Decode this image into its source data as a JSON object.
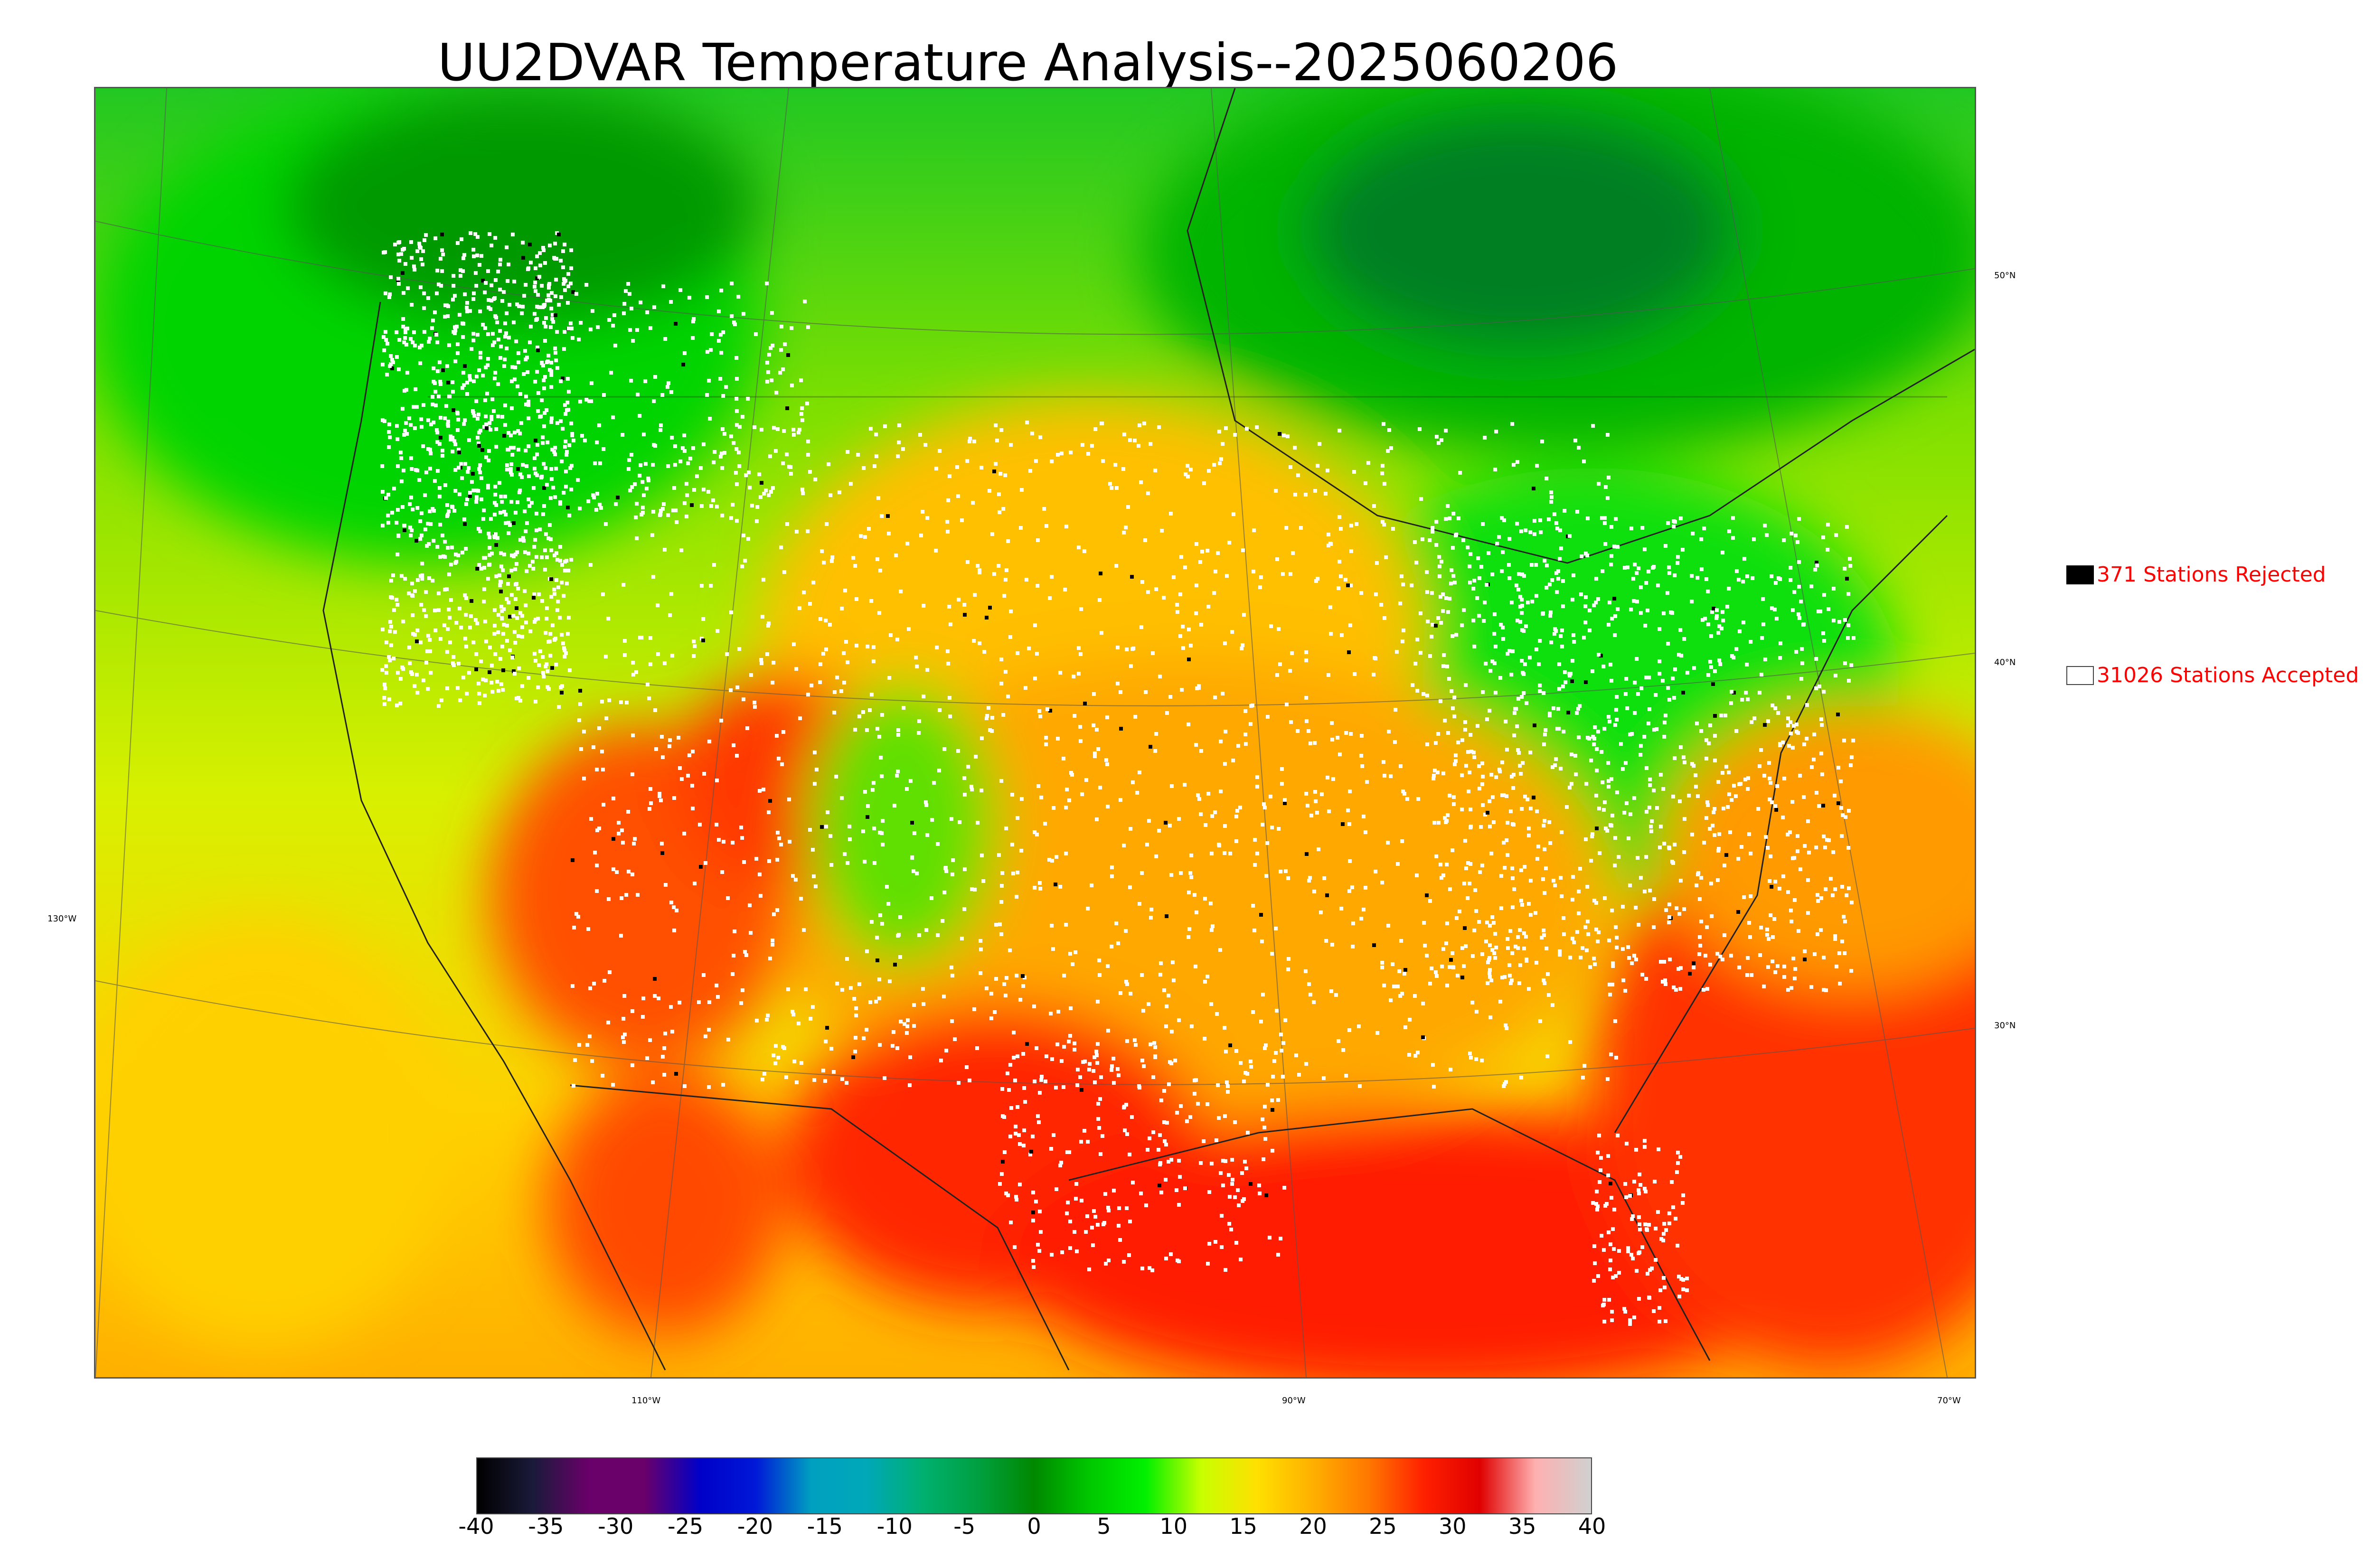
{
  "title": "UU2DVAR Temperature Analysis--2025060206",
  "legend": {
    "rejected": {
      "label": "371 Stations Rejected",
      "color": "#000000"
    },
    "accepted": {
      "label": "31026 Stations Accepted",
      "color": "#ffffff"
    }
  },
  "lat_labels": [
    "50°N",
    "40°N",
    "30°N"
  ],
  "lon_labels": [
    "130°W",
    "110°W",
    "90°W",
    "70°W"
  ],
  "colorbar": {
    "min": -40,
    "max": 40,
    "ticks": [
      "-40",
      "-35",
      "-30",
      "-25",
      "-20",
      "-15",
      "-10",
      "-5",
      "0",
      "5",
      "10",
      "15",
      "20",
      "25",
      "30",
      "35",
      "40"
    ],
    "colors": [
      "#000000",
      "#1a1a3a",
      "#6a006a",
      "#6a006a",
      "#0000c8",
      "#0018d8",
      "#00a0c0",
      "#00a8b8",
      "#00b070",
      "#00a040",
      "#008800",
      "#00c800",
      "#00f000",
      "#c8ff00",
      "#ffe000",
      "#ffb000",
      "#ff7800",
      "#ff2000",
      "#e00000",
      "#ffb0b0",
      "#d0d0d0"
    ]
  },
  "colors": {
    "ocean_warm": "#ff2a00",
    "ocean_mid": "#ffd000",
    "cool": "#00d000",
    "cold": "#009a00",
    "station_accepted": "#ffffff",
    "station_rejected": "#000000"
  }
}
